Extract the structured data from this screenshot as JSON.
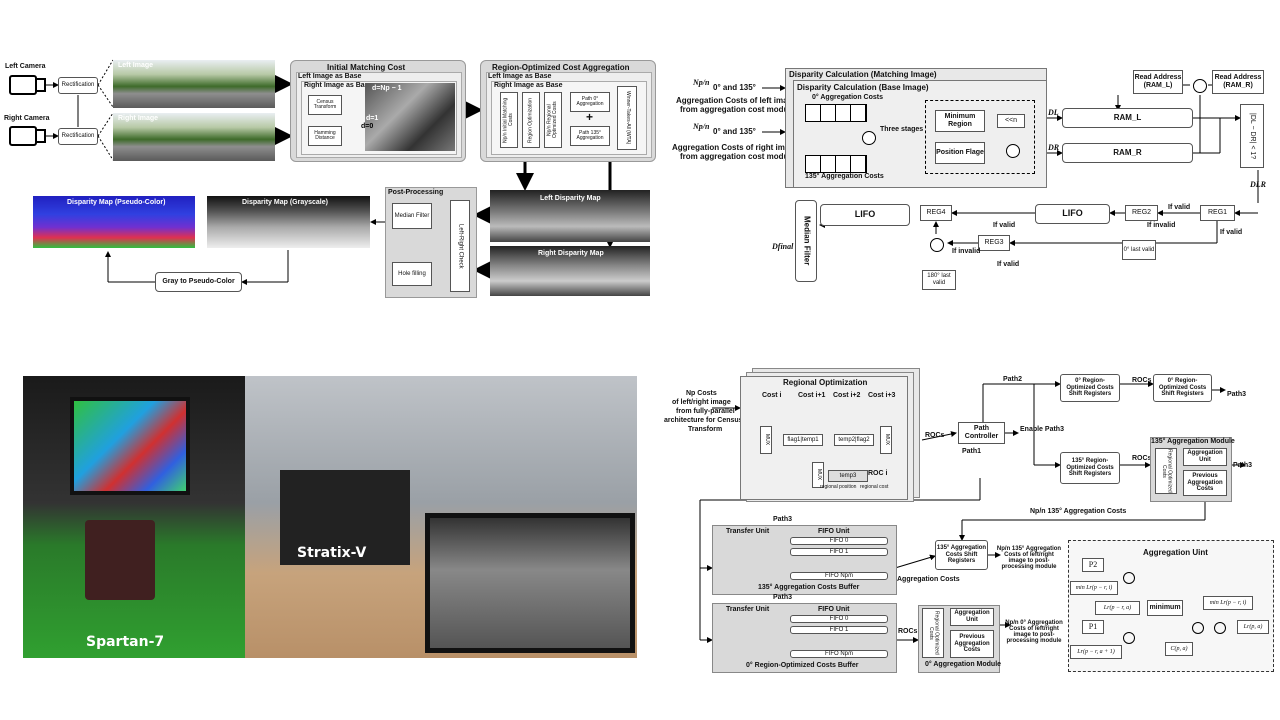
{
  "pipeline": {
    "left_camera": "Left Camera",
    "right_camera": "Right Camera",
    "rectification": "Rectification",
    "left_image": "Left Image",
    "right_image": "Right Image",
    "initial_matching_cost": "Initial Matching Cost",
    "left_base": "Left Image as Base",
    "right_base": "Right Image as Base",
    "census": "Census Transform",
    "hamming": "Hamming Distance",
    "d_np": "d=Np − 1",
    "d_1": "d=1",
    "d_0": "d=0",
    "roca": "Region-Optimized Cost Aggregation",
    "matching_costs": "Np/n Initial Matching Costs",
    "region_opt": "Region Optimization",
    "roc": "Np/n Regional Optimized Costs",
    "path0": "Path 0° Aggregation",
    "path135": "Path 135° Aggregation",
    "plus": "+",
    "wta": "Winner-Takes-All (WTA)",
    "left_disp": "Left Disparity Map",
    "right_disp": "Right Disparity Map",
    "post": "Post-Processing",
    "median": "Median Filter",
    "lr_check": "Left-Right Check",
    "hole": "Hole filling",
    "disp_pseudo": "Disparity Map (Pseudo-Color)",
    "disp_gray": "Disparity Map (Grayscale)",
    "gray2pseudo": "Gray to  Pseudo-Color"
  },
  "disparity_calc": {
    "in_left_frac": "Np/n",
    "in_left": "0° and 135°",
    "in_left2": "Aggregation Costs of left image",
    "in_left3": "from aggregation cost module",
    "in_right": "0° and 135°",
    "in_right2": "Aggregation Costs of right image",
    "in_right3": "from aggregation cost module",
    "outer_title": "Disparity Calculation (Matching Image)",
    "inner_title": "Disparity Calculation (Base Image)",
    "agg0": "0° Aggregation Costs",
    "agg135": "135° Aggregation Costs",
    "three_stages": "Three stages",
    "min_region": "Minimum Region",
    "shift": "<<n",
    "pos_flag": "Position Flage",
    "dl": "DL",
    "dr": "DR",
    "ram_l": "RAM_L",
    "ram_r": "RAM_R",
    "read_l": "Read Address (RAM_L)",
    "read_r": "Read Address (RAM_R)",
    "check": "|DL − DR| < 1?",
    "dlr": "DLR",
    "lifo": "LIFO",
    "reg1": "REG1",
    "reg2": "REG2",
    "reg3": "REG3",
    "reg4": "REG4",
    "if_valid": "If valid",
    "if_invalid": "If invalid",
    "last0": "0° last valid",
    "last180": "180° last valid",
    "median": "Median Filter",
    "dfinal": "Dfinal"
  },
  "photo": {
    "spartan": "Spartan-7",
    "stratix": "Stratix-V"
  },
  "aggregation": {
    "input1": "Np Costs",
    "input2": "of left/right image",
    "input3": "from fully-parallel",
    "input4": "architecture for Census",
    "input5": "Transform",
    "ro_title": "Regional Optimization",
    "cost_i": "Cost i",
    "cost_i1": "Cost i+1",
    "cost_i2": "Cost i+2",
    "cost_i3": "Cost i+3",
    "flag1": "flag1",
    "temp1": "temp1",
    "temp2": "temp2",
    "flag2": "flag2",
    "temp3": "temp3",
    "mux": "MUX",
    "roc_i": "ROC i",
    "reg_pos": "regional position",
    "reg_cost": "regional cost",
    "rocs": "ROCs",
    "path_ctrl": "Path Controller",
    "path1": "Path1",
    "path2": "Path2",
    "path3": "Path3",
    "enable_path3": "Enable Path3",
    "sr0": "0° Region-Optimized Costs Shift Registers",
    "sr0b": "0° Region-Optimized Costs Shift Registers",
    "sr135": "135° Region-Optimized Costs Shift Registers",
    "mod135": "135° Aggregation Module",
    "reg_opt_costs": "Regional Optimized Costs",
    "agg_unit": "Aggregation Unit",
    "prev_agg": "Previous Aggregation Costs",
    "agg135_costs": "Np/n 135° Aggregation Costs",
    "buf135": "135° Aggregation Costs Buffer",
    "buf0": "0° Region-Optimized Costs Buffer",
    "transfer": "Transfer Unit",
    "fifo_unit": "FIFO Unit",
    "fifo0": "FIFO 0",
    "fifo1": "FIFO 1",
    "fifon": "FIFO Np/n",
    "sr135b": "135° Aggregation Costs Shift Registers",
    "out135": "Np/n 135° Aggregation Costs of left/right image to post-processing module",
    "out0": "Np/n 0° Aggregation Costs of left/right image to post-processing module",
    "mod0": "0° Aggregation Module",
    "agg_costs": "Aggregation Costs",
    "au_title": "Aggregation Uint",
    "p1": "P1",
    "p2": "P2",
    "min_lr": "min Lr(p − r, i)",
    "lr_a": "Lr(p − r, a)",
    "lr_a1": "Lr(p − r, a + 1)",
    "minimum": "minimum",
    "min_lr2": "min Lr(p − r, i)",
    "cpa": "C(p, a)",
    "lpa": "Lr(p, a)"
  }
}
